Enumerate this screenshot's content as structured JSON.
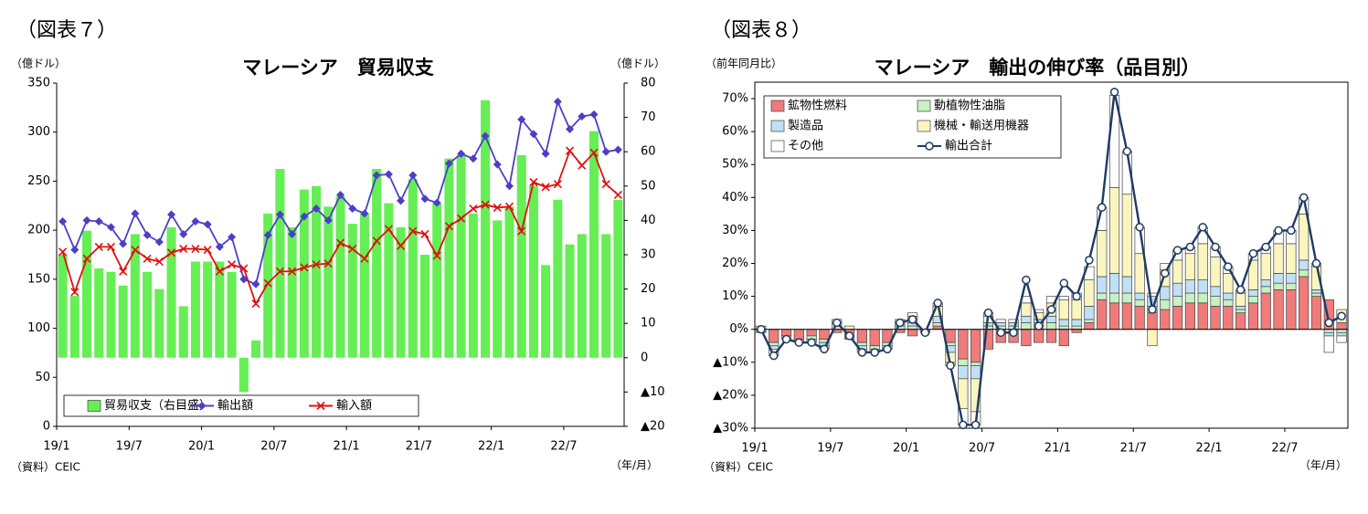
{
  "chart_data": [
    {
      "type": "combo",
      "figure_label": "（図表７）",
      "title": "マレーシア　貿易収支",
      "ylabel": "（億ドル）",
      "y2label": "（億ドル）",
      "xlabel": "（年/月）",
      "source": "（資料）CEIC",
      "categories": [
        "19/1",
        null,
        null,
        null,
        null,
        null,
        "19/7",
        null,
        null,
        null,
        null,
        null,
        "20/1",
        null,
        null,
        null,
        null,
        null,
        "20/7",
        null,
        null,
        null,
        null,
        null,
        "21/1",
        null,
        null,
        null,
        null,
        null,
        "21/7",
        null,
        null,
        null,
        null,
        null,
        "22/1",
        null,
        null,
        null,
        null,
        null,
        "22/7",
        null,
        null,
        null,
        null
      ],
      "ylim": [
        0,
        350
      ],
      "yticks": [
        0,
        50,
        100,
        150,
        200,
        250,
        300,
        350
      ],
      "y2lim": [
        -20,
        80
      ],
      "y2ticks": [
        {
          "value": -20,
          "label": "▲20"
        },
        {
          "value": -10,
          "label": "▲10"
        },
        0,
        10,
        20,
        30,
        40,
        50,
        60,
        70,
        80
      ],
      "grid": false,
      "legend": "lower left",
      "series": [
        {
          "name": "貿易収支（右目盛）",
          "kind": "bar",
          "axis": "y2",
          "color": "#66ee55",
          "values": [
            30,
            18,
            37,
            26,
            25,
            21,
            36,
            25,
            20,
            38,
            15,
            28,
            28,
            28,
            25,
            -10,
            5,
            42,
            55,
            38,
            49,
            50,
            44,
            47,
            39,
            42,
            55,
            45,
            38,
            52,
            30,
            45,
            58,
            59,
            42,
            75,
            40,
            44,
            59,
            50,
            27,
            46,
            33,
            36,
            66,
            36,
            46
          ]
        },
        {
          "name": "輸出額",
          "kind": "line",
          "marker": "diamond",
          "color": "#4b3fc8",
          "values": [
            209,
            180,
            210,
            209,
            203,
            186,
            217,
            195,
            188,
            216,
            196,
            209,
            206,
            183,
            193,
            150,
            145,
            195,
            216,
            196,
            214,
            222,
            210,
            236,
            222,
            217,
            256,
            257,
            230,
            256,
            232,
            228,
            268,
            278,
            273,
            296,
            267,
            245,
            313,
            298,
            278,
            331,
            303,
            316,
            318,
            280,
            282
          ]
        },
        {
          "name": "輸入額",
          "kind": "line",
          "marker": "x",
          "color": "#e01010",
          "values": [
            178,
            137,
            171,
            183,
            183,
            158,
            180,
            171,
            168,
            177,
            181,
            181,
            180,
            158,
            165,
            161,
            125,
            146,
            158,
            158,
            162,
            165,
            166,
            187,
            181,
            171,
            189,
            201,
            184,
            199,
            196,
            174,
            204,
            212,
            222,
            226,
            223,
            224,
            199,
            249,
            244,
            247,
            281,
            266,
            279,
            247,
            236
          ]
        }
      ]
    },
    {
      "type": "combo",
      "figure_label": "（図表８）",
      "title": "マレーシア　輸出の伸び率（品目別）",
      "ylabel": "（前年同月比）",
      "xlabel": "（年/月）",
      "source": "（資料）CEIC",
      "categories": [
        "19/1",
        null,
        null,
        null,
        null,
        null,
        "19/7",
        null,
        null,
        null,
        null,
        null,
        "20/1",
        null,
        null,
        null,
        null,
        null,
        "20/7",
        null,
        null,
        null,
        null,
        null,
        "21/1",
        null,
        null,
        null,
        null,
        null,
        "21/7",
        null,
        null,
        null,
        null,
        null,
        "22/1",
        null,
        null,
        null,
        null,
        null,
        "22/7",
        null,
        null,
        null,
        null
      ],
      "ylim": [
        -30,
        75
      ],
      "yticks": [
        {
          "value": -30,
          "label": "▲30%"
        },
        {
          "value": -20,
          "label": "▲20%"
        },
        {
          "value": -10,
          "label": "▲10%"
        },
        {
          "value": 0,
          "label": "0%"
        },
        {
          "value": 10,
          "label": "10%"
        },
        {
          "value": 20,
          "label": "20%"
        },
        {
          "value": 30,
          "label": "30%"
        },
        {
          "value": 40,
          "label": "40%"
        },
        {
          "value": 50,
          "label": "50%"
        },
        {
          "value": 60,
          "label": "60%"
        },
        {
          "value": 70,
          "label": "70%"
        }
      ],
      "grid": false,
      "legend": "upper left",
      "series": [
        {
          "name": "鉱物性燃料",
          "kind": "stack",
          "color": "#ef7b7b",
          "values": [
            -1,
            -4,
            -2,
            -3,
            -2,
            -3,
            -1,
            -3,
            -4,
            -5,
            -4,
            -1,
            -2,
            -1,
            1,
            -4,
            -9,
            -10,
            -6,
            -4,
            -4,
            -5,
            -4,
            -4,
            -5,
            -1,
            2,
            9,
            8,
            8,
            7,
            5,
            6,
            7,
            8,
            8,
            7,
            7,
            5,
            8,
            11,
            12,
            12,
            16,
            10,
            9,
            2
          ]
        },
        {
          "name": "動植物性油脂",
          "kind": "stack",
          "color": "#c8f0c0",
          "values": [
            0,
            -1,
            -1,
            0,
            -1,
            -1,
            0,
            0,
            -1,
            -1,
            -1,
            1,
            1,
            0,
            1,
            -1,
            -2,
            -1,
            1,
            1,
            1,
            2,
            2,
            2,
            1,
            1,
            1,
            2,
            3,
            3,
            2,
            2,
            3,
            3,
            3,
            3,
            3,
            2,
            1,
            2,
            2,
            2,
            2,
            2,
            1,
            -1,
            -1
          ]
        },
        {
          "name": "製造品",
          "kind": "stack",
          "color": "#bfe0f5",
          "values": [
            0,
            -1,
            0,
            0,
            -1,
            -1,
            0,
            0,
            -1,
            -1,
            -1,
            1,
            1,
            0,
            2,
            -2,
            -4,
            -4,
            1,
            1,
            1,
            2,
            1,
            2,
            2,
            2,
            4,
            5,
            6,
            5,
            2,
            3,
            4,
            4,
            4,
            4,
            3,
            2,
            1,
            2,
            2,
            3,
            3,
            3,
            1,
            -1,
            -1
          ]
        },
        {
          "name": "機械・輸送用機器",
          "kind": "stack",
          "color": "#fbf5c0",
          "values": [
            1,
            -2,
            0,
            -1,
            0,
            -1,
            2,
            1,
            -1,
            0,
            0,
            1,
            2,
            0,
            3,
            -3,
            -9,
            -10,
            2,
            0,
            0,
            4,
            2,
            4,
            6,
            6,
            8,
            14,
            26,
            25,
            12,
            -5,
            5,
            7,
            8,
            11,
            9,
            6,
            4,
            9,
            8,
            9,
            9,
            14,
            7,
            0,
            4
          ]
        },
        {
          "name": "その他",
          "kind": "stack",
          "color": "#ffffff",
          "values": [
            0,
            0,
            0,
            0,
            0,
            0,
            1,
            0,
            0,
            0,
            0,
            0,
            1,
            0,
            1,
            -1,
            -5,
            -4,
            1,
            1,
            1,
            2,
            1,
            2,
            1,
            2,
            4,
            7,
            28,
            13,
            8,
            1,
            2,
            3,
            2,
            5,
            3,
            2,
            1,
            2,
            2,
            4,
            4,
            5,
            1,
            -5,
            -2
          ]
        },
        {
          "name": "輸出合計",
          "kind": "line",
          "marker": "circle",
          "color": "#1f3a64",
          "values": [
            0,
            -8,
            -3,
            -4,
            -4,
            -6,
            2,
            -2,
            -7,
            -7,
            -6,
            2,
            3,
            -1,
            8,
            -11,
            -29,
            -29,
            5,
            -1,
            -1,
            15,
            1,
            6,
            14,
            10,
            21,
            37,
            72,
            54,
            31,
            6,
            17,
            24,
            25,
            31,
            25,
            19,
            12,
            23,
            25,
            30,
            30,
            40,
            20,
            2,
            4
          ]
        }
      ]
    }
  ]
}
